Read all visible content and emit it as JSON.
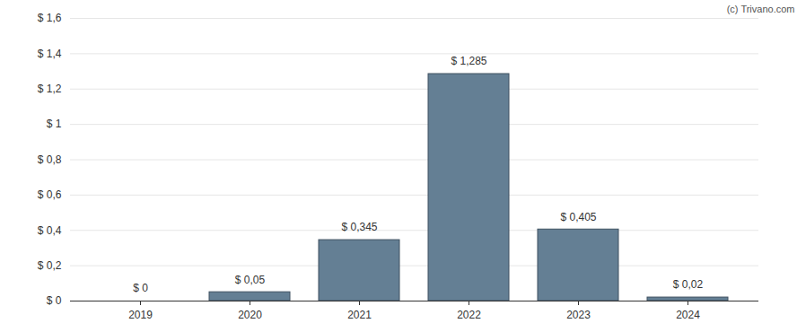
{
  "chart_data": {
    "type": "bar",
    "annotations": [
      "(c) Trivano.com"
    ],
    "categories": [
      "2019",
      "2020",
      "2021",
      "2022",
      "2023",
      "2024"
    ],
    "values": [
      0,
      0.05,
      0.345,
      1.285,
      0.405,
      0.02
    ],
    "value_labels": [
      "$ 0",
      "$ 0,05",
      "$ 0,345",
      "$ 1,285",
      "$ 0,405",
      "$ 0,02"
    ],
    "data_labels": true,
    "color": "#647f94",
    "ylim": [
      0,
      1.6
    ],
    "yticks": [
      {
        "value": 0,
        "label": "$ 0"
      },
      {
        "value": 0.2,
        "label": "$ 0,2"
      },
      {
        "value": 0.4,
        "label": "$ 0,4"
      },
      {
        "value": 0.6,
        "label": "$ 0,6"
      },
      {
        "value": 0.8,
        "label": "$ 0,8"
      },
      {
        "value": 1,
        "label": "$ 1"
      },
      {
        "value": 1.2,
        "label": "$ 1,2"
      },
      {
        "value": 1.4,
        "label": "$ 1,4"
      },
      {
        "value": 1.6,
        "label": "$ 1,6"
      }
    ],
    "grid": true
  }
}
